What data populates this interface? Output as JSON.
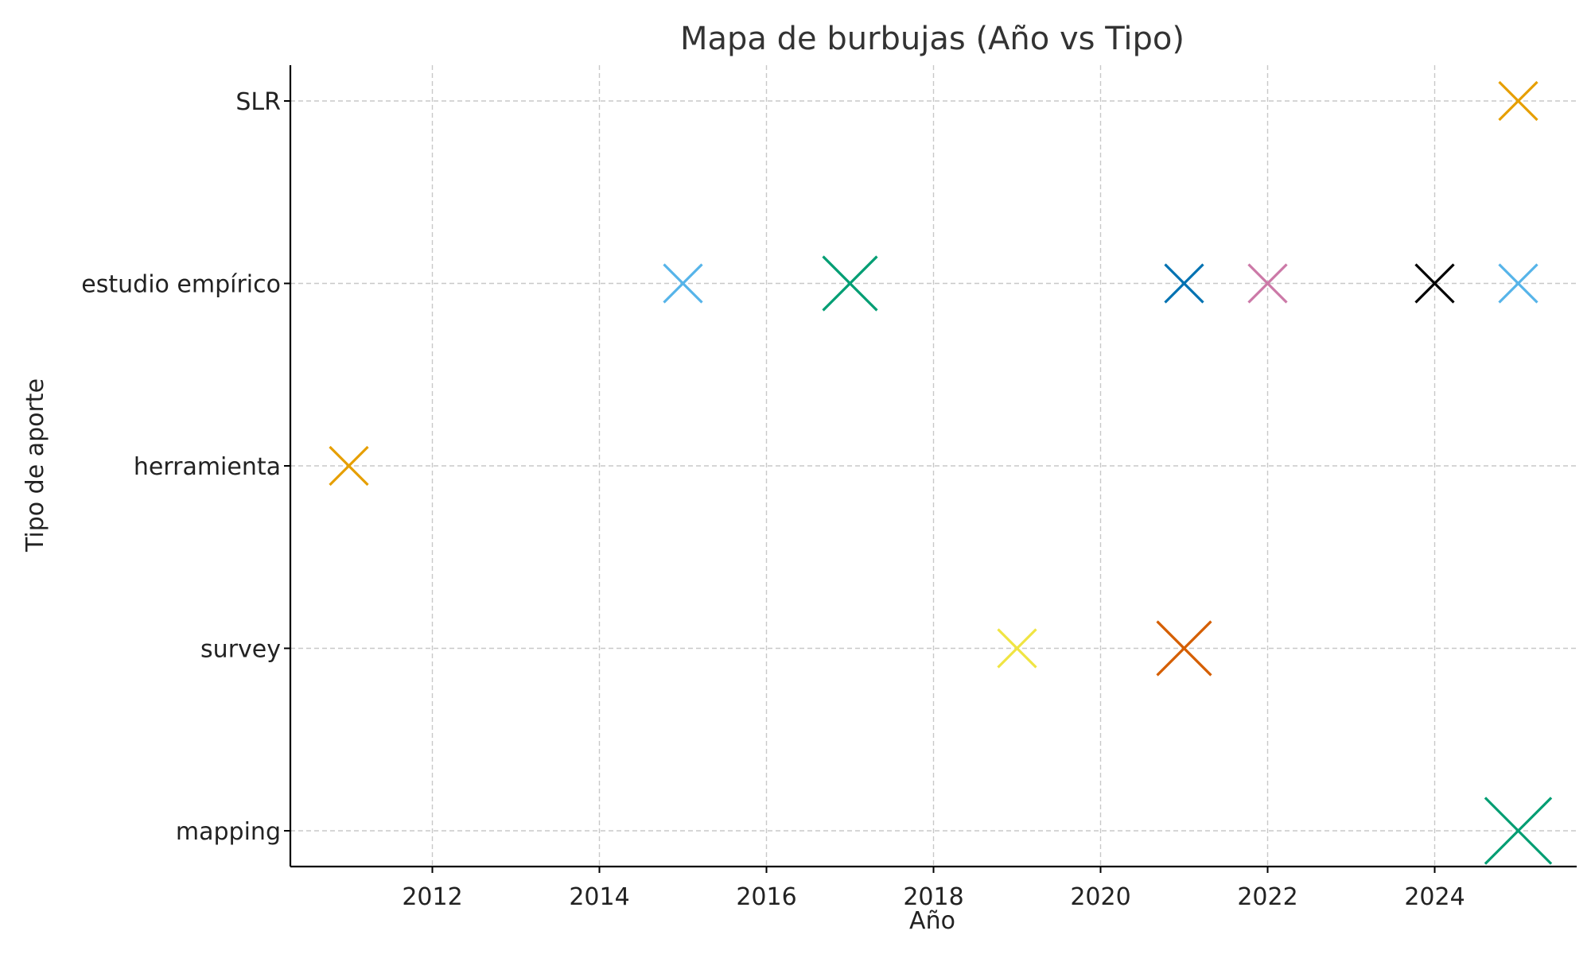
{
  "chart_data": {
    "type": "scatter",
    "title": "Mapa de burbujas (Año vs Tipo)",
    "xlabel": "Año",
    "ylabel": "Tipo de aporte",
    "xlim": [
      2010.3,
      2025.7
    ],
    "x_ticks": [
      2012,
      2014,
      2016,
      2018,
      2020,
      2022,
      2024
    ],
    "categories": [
      "mapping",
      "survey",
      "herramienta",
      "estudio empírico",
      "SLR"
    ],
    "grid": true,
    "marker": "x",
    "points": [
      {
        "x": 2011,
        "y": "herramienta",
        "count": 1,
        "color": "#E69F00"
      },
      {
        "x": 2015,
        "y": "estudio empírico",
        "count": 1,
        "color": "#56B4E9"
      },
      {
        "x": 2017,
        "y": "estudio empírico",
        "count": 2,
        "color": "#009E73"
      },
      {
        "x": 2019,
        "y": "survey",
        "count": 1,
        "color": "#F0E442"
      },
      {
        "x": 2021,
        "y": "survey",
        "count": 2,
        "color": "#D55E00"
      },
      {
        "x": 2021,
        "y": "estudio empírico",
        "count": 1,
        "color": "#0072B2"
      },
      {
        "x": 2022,
        "y": "estudio empírico",
        "count": 1,
        "color": "#CC79A7"
      },
      {
        "x": 2024,
        "y": "estudio empírico",
        "count": 1,
        "color": "#000000"
      },
      {
        "x": 2025,
        "y": "estudio empírico",
        "count": 1,
        "color": "#56B4E9"
      },
      {
        "x": 2025,
        "y": "SLR",
        "count": 1,
        "color": "#E69F00"
      },
      {
        "x": 2025,
        "y": "mapping",
        "count": 3,
        "color": "#009E73"
      }
    ]
  }
}
